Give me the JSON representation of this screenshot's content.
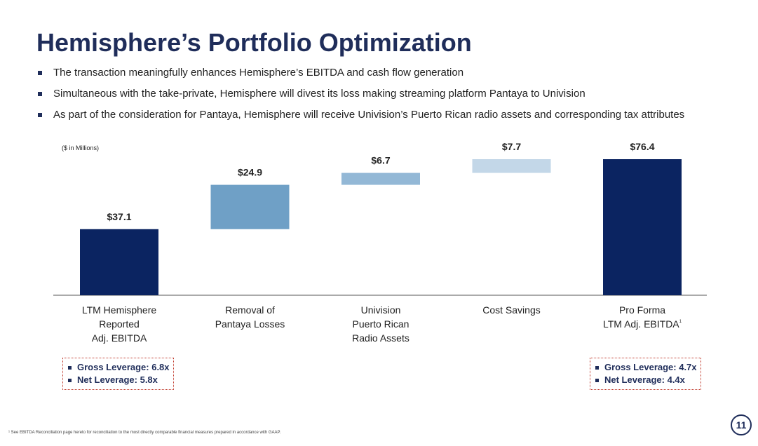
{
  "title": "Hemisphere’s Portfolio Optimization",
  "bullets": [
    "The transaction meaningfully enhances Hemisphere’s EBITDA and cash flow generation",
    "Simultaneous with the take-private, Hemisphere will divest its loss making streaming platform Pantaya to Univision",
    "As part of the consideration for Pantaya, Hemisphere will receive Univision’s Puerto Rican radio assets and corresponding tax attributes"
  ],
  "units_label": "($ in Millions)",
  "colors": {
    "dark": "#0b2461",
    "mid": "#6fa0c6",
    "light": "#93b8d6",
    "pale": "#c3d7e8"
  },
  "chart_data": {
    "type": "waterfall",
    "title": "",
    "xlabel": "",
    "ylabel": "",
    "ylim": [
      0,
      80
    ],
    "categories": [
      [
        "LTM Hemisphere",
        "Reported",
        "Adj. EBITDA"
      ],
      [
        "Removal of",
        "Pantaya Losses"
      ],
      [
        "Univision",
        "Puerto Rican",
        "Radio Assets"
      ],
      [
        "Cost Savings"
      ],
      [
        "Pro Forma",
        "LTM Adj. EBITDA"
      ]
    ],
    "category_footnotes": [
      "",
      "",
      "",
      "",
      "1"
    ],
    "steps": [
      {
        "kind": "total",
        "value": 37.1,
        "label": "$37.1",
        "color": "dark"
      },
      {
        "kind": "delta",
        "value": 24.9,
        "label": "$24.9",
        "color": "mid"
      },
      {
        "kind": "delta",
        "value": 6.7,
        "label": "$6.7",
        "color": "light"
      },
      {
        "kind": "delta",
        "value": 7.7,
        "label": "$7.7",
        "color": "pale"
      },
      {
        "kind": "total",
        "value": 76.4,
        "label": "$76.4",
        "color": "dark"
      }
    ]
  },
  "leverage_left": {
    "gross": "Gross Leverage: 6.8x",
    "net": "Net Leverage: 5.8x"
  },
  "leverage_right": {
    "gross": "Gross Leverage: 4.7x",
    "net": "Net Leverage: 4.4x"
  },
  "footnote": "¹ See EBITDA Reconciliation page hereto for reconciliation to the most directly comparable financial measures prepared in accordance with GAAP.",
  "page_number": "11"
}
